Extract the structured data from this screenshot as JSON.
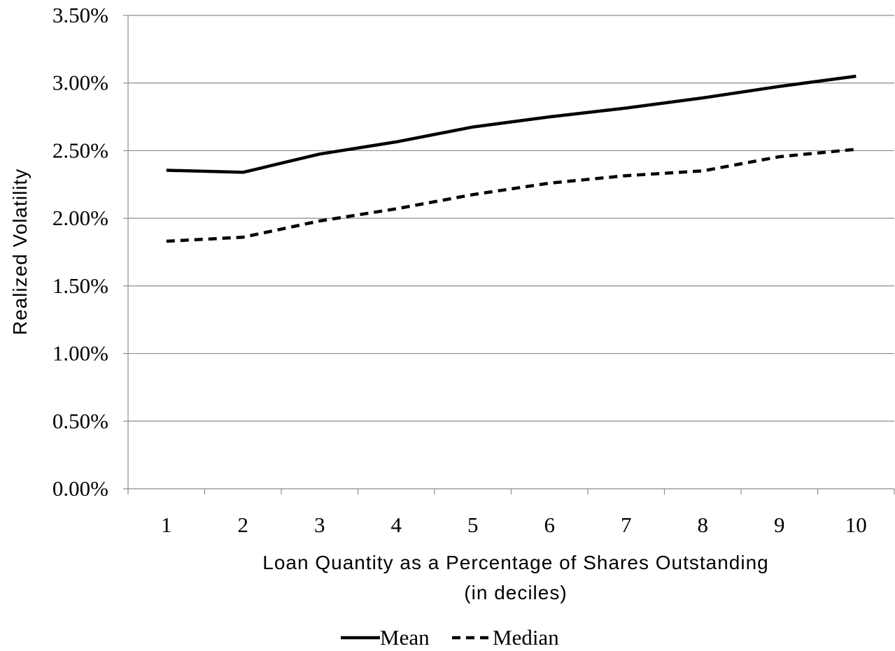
{
  "chart_data": {
    "type": "line",
    "categories": [
      "1",
      "2",
      "3",
      "4",
      "5",
      "6",
      "7",
      "8",
      "9",
      "10"
    ],
    "series": [
      {
        "name": "Mean",
        "style": "solid",
        "color": "#000000",
        "values": [
          2.355,
          2.34,
          2.475,
          2.565,
          2.675,
          2.75,
          2.815,
          2.89,
          2.975,
          3.05
        ]
      },
      {
        "name": "Median",
        "style": "dashed",
        "color": "#000000",
        "values": [
          1.83,
          1.86,
          1.98,
          2.07,
          2.175,
          2.26,
          2.315,
          2.35,
          2.455,
          2.51
        ]
      }
    ],
    "ylim": [
      0,
      3.5
    ],
    "yticks": [
      "0.00%",
      "0.50%",
      "1.00%",
      "1.50%",
      "2.00%",
      "2.50%",
      "3.00%",
      "3.50%"
    ],
    "ytick_values": [
      0,
      0.5,
      1.0,
      1.5,
      2.0,
      2.5,
      3.0,
      3.5
    ],
    "ylabel": "Realized Volatility",
    "xlabel_line1": "Loan Quantity as a Percentage of Shares Outstanding",
    "xlabel_line2": "(in deciles)",
    "grid": "horizontal",
    "legend_position": "bottom"
  }
}
